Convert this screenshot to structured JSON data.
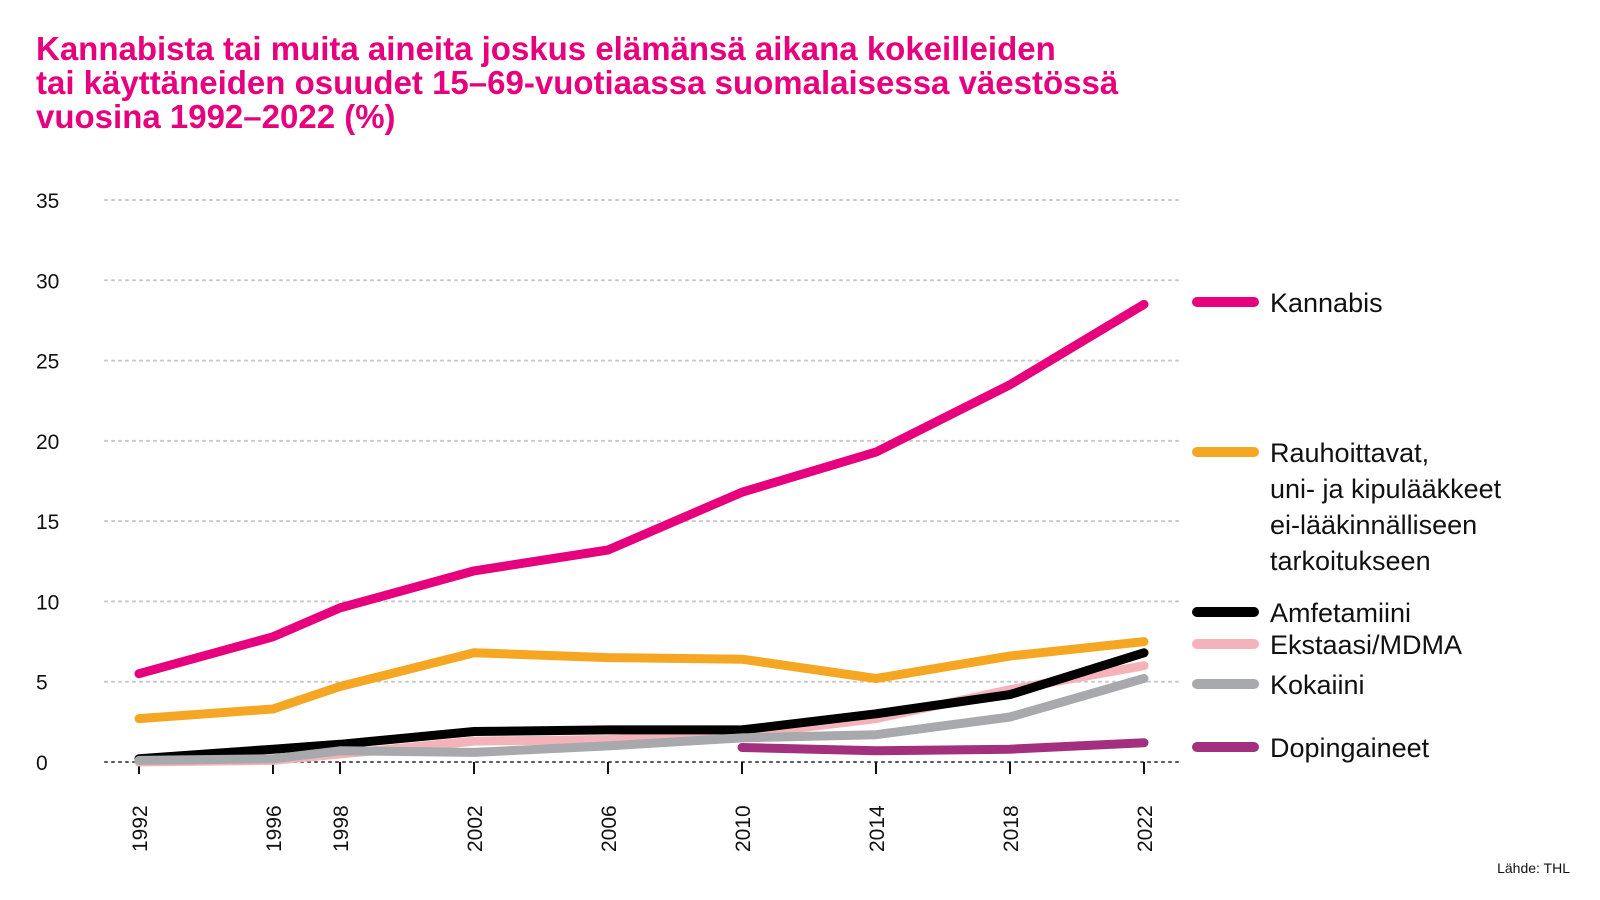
{
  "title_lines": [
    "Kannabista tai muita aineita joskus elämänsä aikana kokeilleiden",
    "tai käyttäneiden osuudet 15–69-vuotiaassa suomalaisessa väestössä",
    "vuosina 1992–2022 (%)"
  ],
  "source": "Lähde: THL",
  "colors": {
    "title": "#e6007e",
    "grid": "#c8c8c8"
  },
  "chart_data": {
    "type": "line",
    "title": "Kannabista tai muita aineita joskus elämänsä aikana kokeilleiden tai käyttäneiden osuudet 15–69-vuotiaassa suomalaisessa väestössä vuosina 1992–2022 (%)",
    "xlabel": "",
    "ylabel": "",
    "ylim": [
      0,
      35
    ],
    "yticks": [
      0,
      5,
      10,
      15,
      20,
      25,
      30,
      35
    ],
    "xlim": [
      1991.5,
      2022.9
    ],
    "xticks": [
      1992,
      1996,
      1998,
      2002,
      2006,
      2010,
      2014,
      2018,
      2022
    ],
    "grid": "horizontal dotted",
    "legend": "right",
    "series": [
      {
        "name": "Kannabis",
        "color": "#e6007e",
        "legend_lines": [
          "Kannabis"
        ],
        "points": [
          [
            1992,
            5.5
          ],
          [
            1996,
            7.8
          ],
          [
            1998,
            9.6
          ],
          [
            2002,
            11.9
          ],
          [
            2006,
            13.2
          ],
          [
            2010,
            16.8
          ],
          [
            2014,
            19.3
          ],
          [
            2018,
            23.5
          ],
          [
            2022,
            28.5
          ]
        ]
      },
      {
        "name": "Rauhoittavat, uni- ja kipulääkkeet ei-lääkinnälliseen tarkoitukseen",
        "color": "#f5a623",
        "legend_lines": [
          "Rauhoittavat,",
          "uni- ja kipulääkkeet",
          "ei-lääkinnälliseen",
          "tarkoitukseen"
        ],
        "points": [
          [
            1992,
            2.7
          ],
          [
            1996,
            3.3
          ],
          [
            1998,
            4.7
          ],
          [
            2002,
            6.8
          ],
          [
            2006,
            6.5
          ],
          [
            2010,
            6.4
          ],
          [
            2014,
            5.2
          ],
          [
            2018,
            6.6
          ],
          [
            2022,
            7.5
          ]
        ]
      },
      {
        "name": "Ekstaasi/MDMA",
        "color": "#f4b3b8",
        "legend_lines": [
          "Ekstaasi/MDMA"
        ],
        "points": [
          [
            1992,
            0.0
          ],
          [
            1996,
            0.1
          ],
          [
            1998,
            0.5
          ],
          [
            2002,
            1.3
          ],
          [
            2006,
            1.4
          ],
          [
            2010,
            1.7
          ],
          [
            2014,
            2.7
          ],
          [
            2018,
            4.5
          ],
          [
            2022,
            6.0
          ]
        ]
      },
      {
        "name": "Amfetamiini",
        "color": "#000000",
        "legend_lines": [
          "Amfetamiini"
        ],
        "points": [
          [
            1992,
            0.2
          ],
          [
            1996,
            0.8
          ],
          [
            1998,
            1.1
          ],
          [
            2002,
            1.9
          ],
          [
            2006,
            2.0
          ],
          [
            2010,
            2.0
          ],
          [
            2014,
            3.0
          ],
          [
            2018,
            4.2
          ],
          [
            2022,
            6.8
          ]
        ]
      },
      {
        "name": "Kokaiini",
        "color": "#a7a9ac",
        "legend_lines": [
          "Kokaiini"
        ],
        "points": [
          [
            1992,
            0.1
          ],
          [
            1996,
            0.2
          ],
          [
            1998,
            0.7
          ],
          [
            2002,
            0.6
          ],
          [
            2006,
            1.0
          ],
          [
            2010,
            1.5
          ],
          [
            2014,
            1.7
          ],
          [
            2018,
            2.8
          ],
          [
            2022,
            5.2
          ]
        ]
      },
      {
        "name": "Dopingaineet",
        "color": "#a2307f",
        "legend_lines": [
          "Dopingaineet"
        ],
        "points": [
          [
            2010,
            0.9
          ],
          [
            2014,
            0.7
          ],
          [
            2018,
            0.8
          ],
          [
            2022,
            1.2
          ]
        ]
      }
    ]
  }
}
